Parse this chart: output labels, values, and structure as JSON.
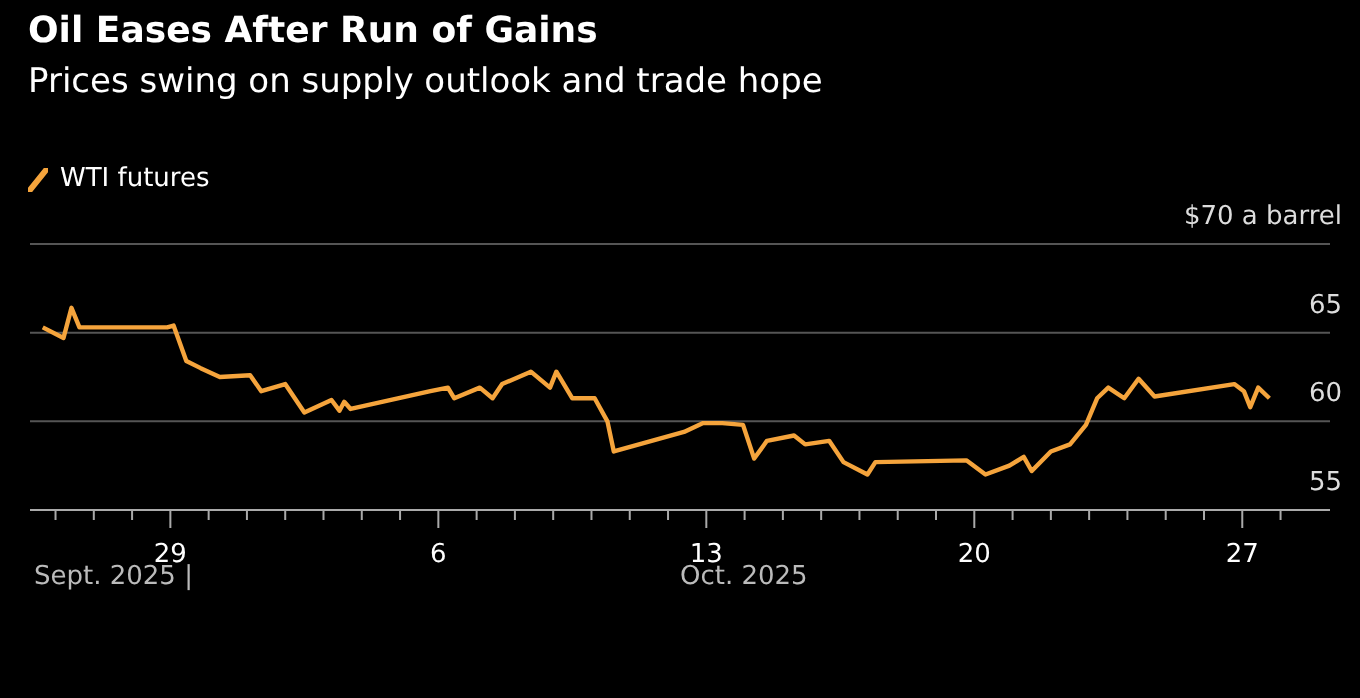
{
  "chart_data": {
    "type": "line",
    "title": "Oil Eases After Run of Gains",
    "subtitle": "Prices swing on supply outlook and trade hope",
    "annotations": [
      "Sept. 2025 |",
      "Oct. 2025"
    ],
    "x": [
      "2025-09-25T16:00",
      "2025-09-26T05:00",
      "2025-09-26T10:00",
      "2025-09-26T15:00",
      "2025-09-28T22:00",
      "2025-09-29T02:00",
      "2025-09-29T10:00",
      "2025-09-29T19:00",
      "2025-09-30T07:00",
      "2025-10-01T02:00",
      "2025-10-01T09:00",
      "2025-10-02T00:00",
      "2025-10-02T12:00",
      "2025-10-03T05:00",
      "2025-10-03T10:00",
      "2025-10-03T13:00",
      "2025-10-03T17:00",
      "2025-10-05T19:00",
      "2025-10-06T06:00",
      "2025-10-06T10:00",
      "2025-10-07T02:00",
      "2025-10-07T10:00",
      "2025-10-07T16:00",
      "2025-10-08T10:00",
      "2025-10-08T22:00",
      "2025-10-09T02:00",
      "2025-10-09T12:00",
      "2025-10-10T02:00",
      "2025-10-10T10:00",
      "2025-10-10T14:00",
      "2025-10-12T10:00",
      "2025-10-12T22:00",
      "2025-10-13T10:00",
      "2025-10-13T23:00",
      "2025-10-14T06:00",
      "2025-10-14T14:00",
      "2025-10-15T07:00",
      "2025-10-15T14:00",
      "2025-10-16T05:00",
      "2025-10-16T14:00",
      "2025-10-17T05:00",
      "2025-10-17T10:00",
      "2025-10-19T19:00",
      "2025-10-20T07:00",
      "2025-10-20T22:00",
      "2025-10-21T07:00",
      "2025-10-21T12:00",
      "2025-10-22T00:00",
      "2025-10-22T12:00",
      "2025-10-22T22:00",
      "2025-10-23T05:00",
      "2025-10-23T12:00",
      "2025-10-23T22:00",
      "2025-10-24T07:00",
      "2025-10-24T17:00",
      "2025-10-26T19:00",
      "2025-10-27T01:00",
      "2025-10-27T05:00",
      "2025-10-27T10:00",
      "2025-10-27T17:00"
    ],
    "series": [
      {
        "name": "WTI futures",
        "color": "#f5a43c",
        "values": [
          65.3,
          64.7,
          66.4,
          65.3,
          65.3,
          65.4,
          63.4,
          63.0,
          62.5,
          62.6,
          61.7,
          62.1,
          60.5,
          61.2,
          60.6,
          61.1,
          60.7,
          61.7,
          61.9,
          61.3,
          61.9,
          61.3,
          62.1,
          62.8,
          61.9,
          62.8,
          61.3,
          61.3,
          60.0,
          58.3,
          59.4,
          59.9,
          59.9,
          59.8,
          57.9,
          58.9,
          59.2,
          58.7,
          58.9,
          57.7,
          57.0,
          57.7,
          57.8,
          57.0,
          57.5,
          58.0,
          57.2,
          58.3,
          58.7,
          59.8,
          61.3,
          61.9,
          61.3,
          62.4,
          61.4,
          62.1,
          61.7,
          60.8,
          61.9,
          61.3
        ]
      }
    ],
    "xlim": [
      "2025-09-25T08:00",
      "2025-10-29T07:00"
    ],
    "xticks": [
      {
        "value": "2025-09-26",
        "label": null
      },
      {
        "value": "2025-09-27",
        "label": null
      },
      {
        "value": "2025-09-28",
        "label": null
      },
      {
        "value": "2025-09-29",
        "label": "29"
      },
      {
        "value": "2025-09-30",
        "label": null
      },
      {
        "value": "2025-10-01",
        "label": null
      },
      {
        "value": "2025-10-02",
        "label": null
      },
      {
        "value": "2025-10-03",
        "label": null
      },
      {
        "value": "2025-10-04",
        "label": null
      },
      {
        "value": "2025-10-05",
        "label": null
      },
      {
        "value": "2025-10-06",
        "label": "6"
      },
      {
        "value": "2025-10-07",
        "label": null
      },
      {
        "value": "2025-10-08",
        "label": null
      },
      {
        "value": "2025-10-09",
        "label": null
      },
      {
        "value": "2025-10-10",
        "label": null
      },
      {
        "value": "2025-10-11",
        "label": null
      },
      {
        "value": "2025-10-12",
        "label": null
      },
      {
        "value": "2025-10-13",
        "label": "13"
      },
      {
        "value": "2025-10-14",
        "label": null
      },
      {
        "value": "2025-10-15",
        "label": null
      },
      {
        "value": "2025-10-16",
        "label": null
      },
      {
        "value": "2025-10-17",
        "label": null
      },
      {
        "value": "2025-10-18",
        "label": null
      },
      {
        "value": "2025-10-19",
        "label": null
      },
      {
        "value": "2025-10-20",
        "label": "20"
      },
      {
        "value": "2025-10-21",
        "label": null
      },
      {
        "value": "2025-10-22",
        "label": null
      },
      {
        "value": "2025-10-23",
        "label": null
      },
      {
        "value": "2025-10-24",
        "label": null
      },
      {
        "value": "2025-10-25",
        "label": null
      },
      {
        "value": "2025-10-26",
        "label": null
      },
      {
        "value": "2025-10-27",
        "label": "27"
      },
      {
        "value": "2025-10-28",
        "label": null
      }
    ],
    "ylim": [
      55,
      70
    ],
    "yticks": [
      55,
      60,
      65,
      {
        "value": 70,
        "label": "$70 a barrel"
      }
    ],
    "grid": "y",
    "legend": "top left",
    "marker": "none",
    "line_style": "solid"
  }
}
